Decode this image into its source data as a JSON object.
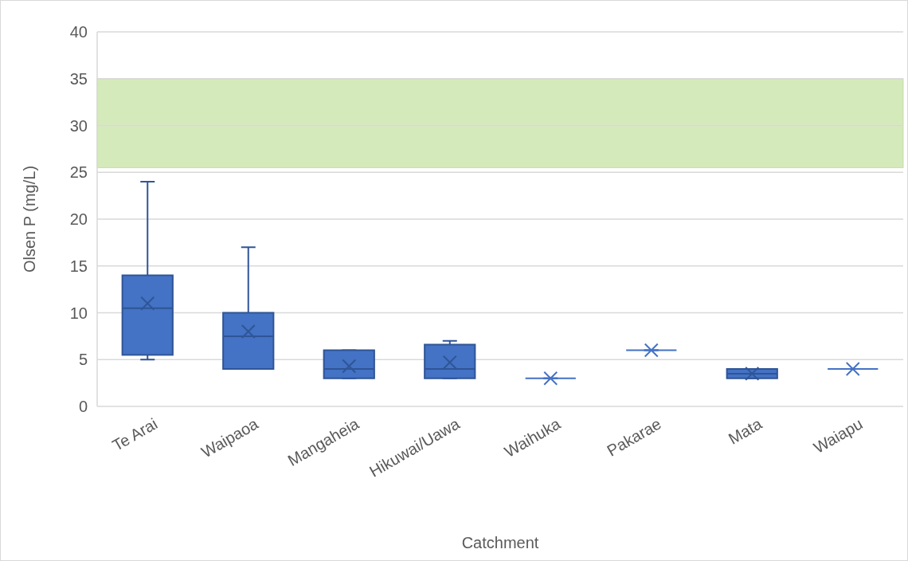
{
  "chart_data": {
    "type": "box",
    "xlabel": "Catchment",
    "ylabel": "Olsen P (mg/L)",
    "categories": [
      "Te Arai",
      "Waipaoa",
      "Mangaheia",
      "Hikuwai/Uawa",
      "Waihuka",
      "Pakarae",
      "Mata",
      "Waiapu"
    ],
    "series": [
      {
        "color": "#4472c4",
        "boxes": [
          {
            "low": 5,
            "q1": 5.5,
            "median": 10.5,
            "q3": 14,
            "high": 24,
            "mean": 11
          },
          {
            "low": 4,
            "q1": 4,
            "median": 7.5,
            "q3": 10,
            "high": 17,
            "mean": 8
          },
          {
            "low": 3,
            "q1": 3,
            "median": 4,
            "q3": 6,
            "high": 6,
            "mean": 4.3
          },
          {
            "low": 3,
            "q1": 3,
            "median": 4,
            "q3": 6.6,
            "high": 7,
            "mean": 4.7
          },
          {
            "low": 3,
            "q1": 3,
            "median": 3,
            "q3": 3,
            "high": 3,
            "mean": 3
          },
          {
            "low": 6,
            "q1": 6,
            "median": 6,
            "q3": 6,
            "high": 6,
            "mean": 6
          },
          {
            "low": 3,
            "q1": 3,
            "median": 3.5,
            "q3": 4,
            "high": 4,
            "mean": 3.5
          },
          {
            "low": 4,
            "q1": 4,
            "median": 4,
            "q3": 4,
            "high": 4,
            "mean": 4
          }
        ]
      }
    ],
    "ylim": [
      0,
      40
    ],
    "yticks": [
      0,
      5,
      10,
      15,
      20,
      25,
      30,
      35,
      40
    ],
    "grid": "y",
    "marker": "cross",
    "bands": [
      {
        "axis": "y",
        "from": 25.5,
        "to": 35,
        "color": "#d5eabb"
      }
    ]
  }
}
